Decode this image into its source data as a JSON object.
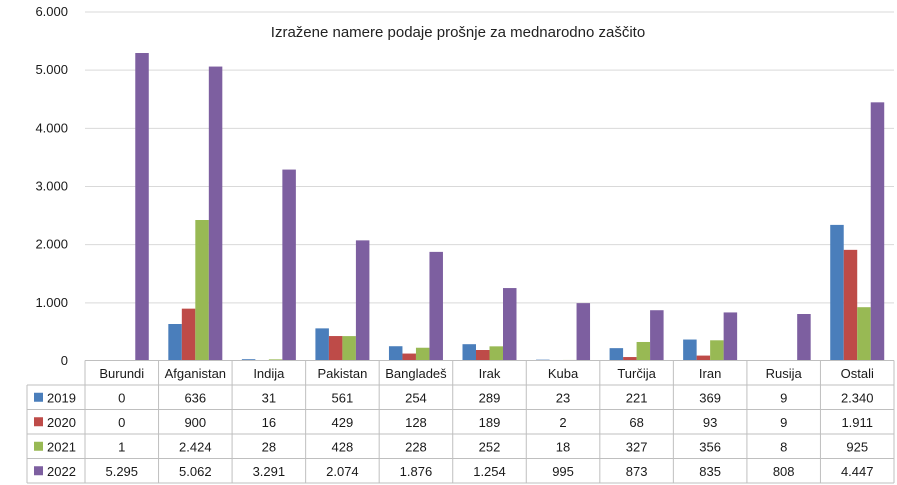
{
  "chart_data": {
    "type": "bar",
    "title": "Izražene namere podaje prošnje za mednarodno zaščito",
    "categories": [
      "Burundi",
      "Afganistan",
      "Indija",
      "Pakistan",
      "Bangladeš",
      "Irak",
      "Kuba",
      "Turčija",
      "Iran",
      "Rusija",
      "Ostali"
    ],
    "series": [
      {
        "name": "2019",
        "color": "#4a7ebb",
        "values": [
          0,
          636,
          31,
          561,
          254,
          289,
          23,
          221,
          369,
          9,
          2340
        ],
        "labels": [
          "0",
          "636",
          "31",
          "561",
          "254",
          "289",
          "23",
          "221",
          "369",
          "9",
          "2.340"
        ]
      },
      {
        "name": "2020",
        "color": "#be4b48",
        "values": [
          0,
          900,
          16,
          429,
          128,
          189,
          2,
          68,
          93,
          9,
          1911
        ],
        "labels": [
          "0",
          "900",
          "16",
          "429",
          "128",
          "189",
          "2",
          "68",
          "93",
          "9",
          "1.911"
        ]
      },
      {
        "name": "2021",
        "color": "#98b954",
        "values": [
          1,
          2424,
          28,
          428,
          228,
          252,
          18,
          327,
          356,
          8,
          925
        ],
        "labels": [
          "1",
          "2.424",
          "28",
          "428",
          "228",
          "252",
          "18",
          "327",
          "356",
          "8",
          "925"
        ]
      },
      {
        "name": "2022",
        "color": "#7d5fa0",
        "values": [
          5295,
          5062,
          3291,
          2074,
          1876,
          1254,
          995,
          873,
          835,
          808,
          4447
        ],
        "labels": [
          "5.295",
          "5.062",
          "3.291",
          "2.074",
          "1.876",
          "1.254",
          "995",
          "873",
          "835",
          "808",
          "4.447"
        ]
      }
    ],
    "ylim": [
      0,
      6000
    ],
    "yticks": [
      0,
      1000,
      2000,
      3000,
      4000,
      5000,
      6000
    ],
    "ytick_labels": [
      "0",
      "1.000",
      "2.000",
      "3.000",
      "4.000",
      "5.000",
      "6.000"
    ],
    "grid": true,
    "legend": "data-table"
  }
}
